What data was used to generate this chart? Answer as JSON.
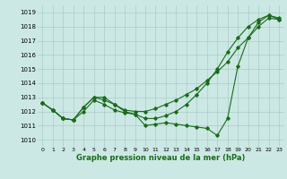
{
  "xlabel": "Graphe pression niveau de la mer (hPa)",
  "bg_color": "#cce8e4",
  "grid_color": "#aaccc8",
  "line_color": "#1a6b1a",
  "ylim": [
    1009.5,
    1019.5
  ],
  "xlim": [
    -0.5,
    23.5
  ],
  "yticks": [
    1010,
    1011,
    1012,
    1013,
    1014,
    1015,
    1016,
    1017,
    1018,
    1019
  ],
  "xticks": [
    0,
    1,
    2,
    3,
    4,
    5,
    6,
    7,
    8,
    9,
    10,
    11,
    12,
    13,
    14,
    15,
    16,
    17,
    18,
    19,
    20,
    21,
    22,
    23
  ],
  "series1": [
    1012.6,
    1012.1,
    1011.5,
    1011.4,
    1012.0,
    1012.8,
    1012.5,
    1012.1,
    1011.9,
    1011.8,
    1011.0,
    1011.1,
    1011.2,
    1011.1,
    1011.0,
    1010.9,
    1010.8,
    1010.3,
    1011.5,
    1015.2,
    1017.2,
    1018.3,
    1018.8,
    1018.6
  ],
  "series2": [
    1012.6,
    1012.1,
    1011.5,
    1011.4,
    1012.3,
    1013.0,
    1013.0,
    1012.5,
    1012.1,
    1012.0,
    1012.0,
    1012.2,
    1012.5,
    1012.8,
    1013.2,
    1013.6,
    1014.2,
    1014.8,
    1015.5,
    1016.5,
    1017.2,
    1018.0,
    1018.6,
    1018.5
  ],
  "series3": [
    1012.6,
    1012.1,
    1011.5,
    1011.4,
    1012.3,
    1013.0,
    1012.8,
    1012.5,
    1012.0,
    1011.8,
    1011.5,
    1011.5,
    1011.7,
    1012.0,
    1012.5,
    1013.2,
    1014.0,
    1015.0,
    1016.2,
    1017.2,
    1018.0,
    1018.5,
    1018.8,
    1018.5
  ]
}
